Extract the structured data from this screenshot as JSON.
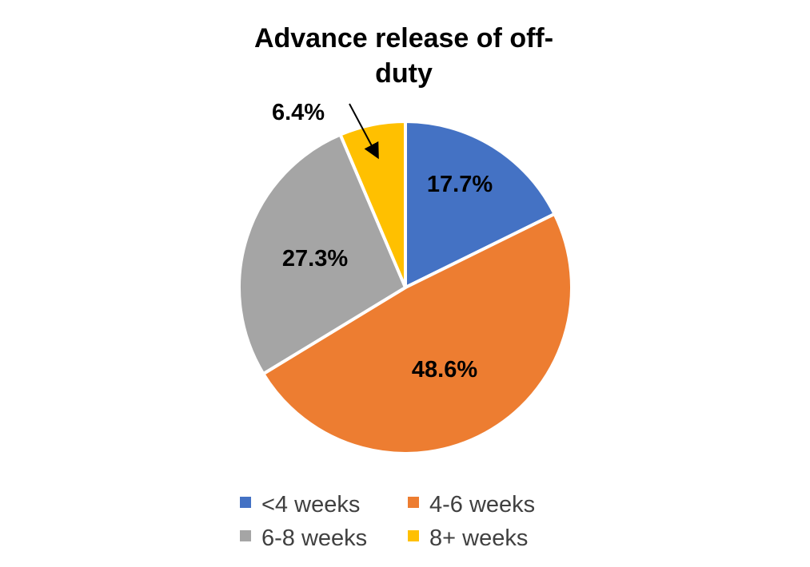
{
  "chart_data": {
    "type": "pie",
    "title": "Advance release of off-duty",
    "title_lines": [
      "Advance release of off-",
      "duty"
    ],
    "categories": [
      "<4 weeks",
      "4-6 weeks",
      "6-8 weeks",
      "8+ weeks"
    ],
    "values": [
      17.7,
      48.6,
      27.3,
      6.4
    ],
    "value_labels": [
      "17.7%",
      "48.6%",
      "27.3%",
      "6.4%"
    ],
    "colors": [
      "#4472C4",
      "#ED7D31",
      "#A5A5A5",
      "#FFC000"
    ],
    "legend": {
      "position": "bottom",
      "entries": [
        "<4 weeks",
        "4-6 weeks",
        "6-8 weeks",
        "8+ weeks"
      ]
    },
    "annotations": [
      {
        "text": "6.4%",
        "target": "8+ weeks",
        "style": "arrow-callout"
      }
    ]
  }
}
